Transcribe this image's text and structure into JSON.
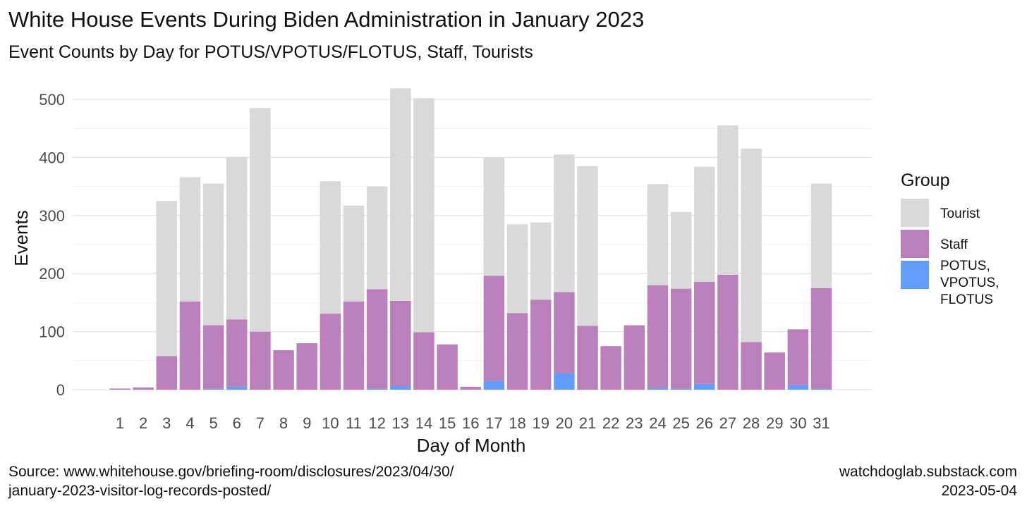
{
  "title": "White House Events During Biden Administration in January 2023",
  "subtitle": "Event Counts by Day for POTUS/VPOTUS/FLOTUS, Staff, Tourists",
  "caption": {
    "source_line1": "Source: www.whitehouse.gov/briefing-room/disclosures/2023/04/30/",
    "source_line2": "january-2023-visitor-log-records-posted/",
    "site": "watchdoglab.substack.com",
    "date": "2023-05-04"
  },
  "colors": {
    "tourist": "#d9d9d9",
    "staff": "#bb7fbb",
    "potus": "#619cff",
    "grid": "#e5e5e5",
    "text": "#4d4d4d"
  },
  "chart_data": {
    "type": "bar",
    "stacked": true,
    "xlabel": "Day of Month",
    "ylabel": "Events",
    "ylim": [
      0,
      525
    ],
    "yticks": [
      0,
      100,
      200,
      300,
      400,
      500
    ],
    "grid": true,
    "legend_position": "right",
    "legend_title": "Group",
    "categories": [
      "1",
      "2",
      "3",
      "4",
      "5",
      "6",
      "7",
      "8",
      "9",
      "10",
      "11",
      "12",
      "13",
      "14",
      "15",
      "16",
      "17",
      "18",
      "19",
      "20",
      "21",
      "22",
      "23",
      "24",
      "25",
      "26",
      "27",
      "28",
      "29",
      "30",
      "31"
    ],
    "series": [
      {
        "name": "POTUS,\nVPOTUS,\nFLOTUS",
        "legend_lines": [
          "POTUS,",
          "VPOTUS,",
          "FLOTUS"
        ],
        "color_key": "potus",
        "values": [
          0,
          0,
          0,
          0,
          2,
          5,
          0,
          0,
          0,
          0,
          0,
          2,
          6,
          0,
          0,
          0,
          15,
          0,
          0,
          28,
          0,
          0,
          0,
          3,
          2,
          10,
          0,
          0,
          0,
          8,
          2
        ]
      },
      {
        "name": "Staff",
        "color_key": "staff",
        "values": [
          2,
          4,
          58,
          152,
          109,
          116,
          100,
          68,
          80,
          131,
          152,
          171,
          147,
          99,
          78,
          5,
          181,
          132,
          155,
          140,
          110,
          75,
          111,
          177,
          172,
          176,
          198,
          82,
          64,
          96,
          173
        ]
      },
      {
        "name": "Tourist",
        "color_key": "tourist",
        "values": [
          0,
          0,
          267,
          214,
          244,
          280,
          385,
          0,
          0,
          228,
          165,
          177,
          366,
          403,
          0,
          0,
          204,
          153,
          133,
          237,
          275,
          0,
          0,
          174,
          132,
          198,
          257,
          333,
          0,
          0,
          180
        ]
      }
    ],
    "legend_order": [
      "Tourist",
      "Staff",
      "POTUS,\nVPOTUS,\nFLOTUS"
    ]
  }
}
